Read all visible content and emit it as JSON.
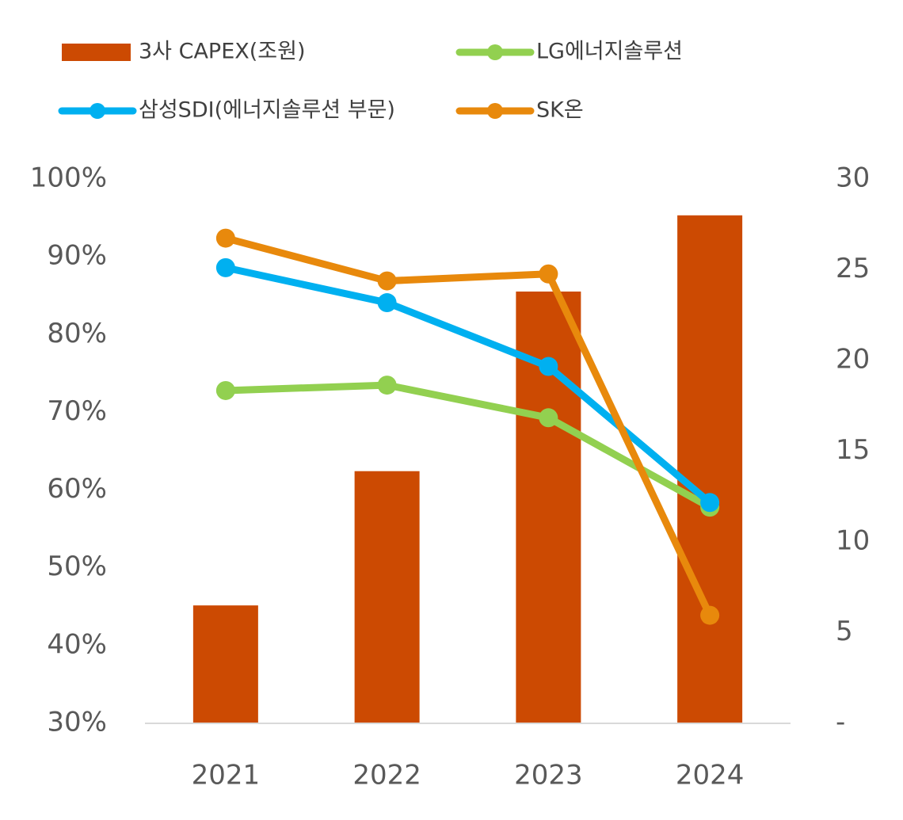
{
  "chart_data": {
    "type": "combo",
    "categories": [
      "2021",
      "2022",
      "2023",
      "2024"
    ],
    "series": [
      {
        "name": "3사 CAPEX(조원)",
        "type": "bar",
        "axis": "y2",
        "color": "#cc4a02",
        "values": [
          6.5,
          13.9,
          23.8,
          28.0
        ]
      },
      {
        "name": "LG에너지솔루션",
        "type": "line",
        "color": "#92d050",
        "values": [
          72.8,
          73.5,
          69.3,
          57.8
        ]
      },
      {
        "name": "삼성SDI(에너지솔루션 부문)",
        "type": "line",
        "color": "#00b0f0",
        "values": [
          88.6,
          84.1,
          75.9,
          58.4
        ]
      },
      {
        "name": "SK온",
        "type": "line",
        "color": "#e8890c",
        "values": [
          92.4,
          86.9,
          87.8,
          43.9
        ]
      }
    ],
    "ylim": [
      30,
      100
    ],
    "yticks": [
      {
        "value": 30,
        "label": "30%"
      },
      {
        "value": 40,
        "label": "40%"
      },
      {
        "value": 50,
        "label": "50%"
      },
      {
        "value": 60,
        "label": "60%"
      },
      {
        "value": 70,
        "label": "70%"
      },
      {
        "value": 80,
        "label": "80%"
      },
      {
        "value": 90,
        "label": "90%"
      },
      {
        "value": 100,
        "label": "100%"
      }
    ],
    "y2lim": [
      0,
      30
    ],
    "y2ticks": [
      {
        "value": 0,
        "label": "-"
      },
      5,
      10,
      15,
      20,
      25,
      30
    ],
    "legend": "top",
    "grid": false
  }
}
